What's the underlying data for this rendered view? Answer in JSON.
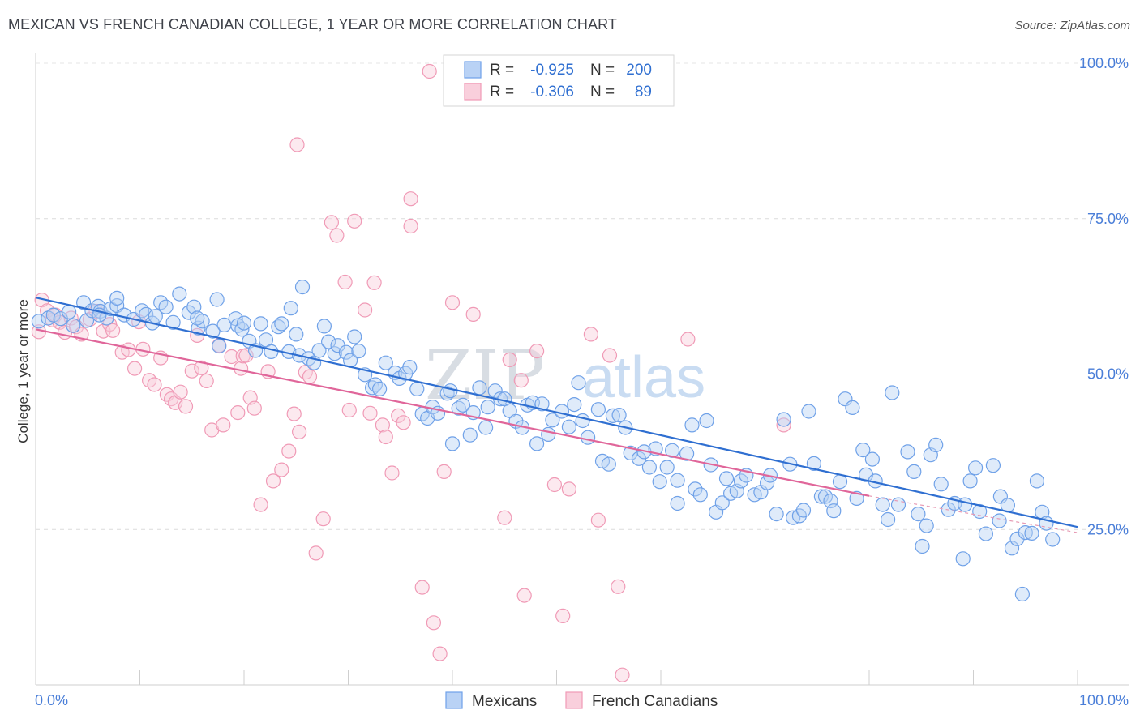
{
  "title": "MEXICAN VS FRENCH CANADIAN COLLEGE, 1 YEAR OR MORE CORRELATION CHART",
  "source": "Source: ZipAtlas.com",
  "watermark": {
    "zip": "ZIP",
    "atlas": "atlas"
  },
  "chart_data": {
    "type": "scatter",
    "title": "MEXICAN VS FRENCH CANADIAN COLLEGE, 1 YEAR OR MORE CORRELATION CHART",
    "xlabel": "",
    "ylabel": "College, 1 year or more",
    "xlim": [
      0,
      100
    ],
    "ylim": [
      0,
      100
    ],
    "x_tick_labels": [
      "0.0%",
      "100.0%"
    ],
    "y_ticks": [
      25,
      50,
      75,
      100
    ],
    "y_tick_labels": [
      "25.0%",
      "50.0%",
      "75.0%",
      "100.0%"
    ],
    "grid": true,
    "legend_position": "top-center",
    "legend": [
      {
        "name": "Mexicans",
        "r_label": "R =",
        "r_value": "-0.925",
        "n_label": "N =",
        "n_value": "200",
        "color": "#6fa1e8",
        "fill": "#b9d2f5"
      },
      {
        "name": "French Canadians",
        "r_label": "R =",
        "r_value": "-0.306",
        "n_label": "N =",
        "n_value": "89",
        "color": "#f09ab6",
        "fill": "#f9cfdc"
      }
    ],
    "series": [
      {
        "name": "Mexicans",
        "color": "#6fa1e8",
        "trend": {
          "x": [
            0,
            100
          ],
          "y": [
            62.3,
            25.4
          ],
          "color": "#2f6fd1"
        },
        "points": [
          [
            0.3,
            58.5
          ],
          [
            1.2,
            59.0
          ],
          [
            1.7,
            59.5
          ],
          [
            2.4,
            58.9
          ],
          [
            3.2,
            60.0
          ],
          [
            3.6,
            57.8
          ],
          [
            4.6,
            61.5
          ],
          [
            4.9,
            58.6
          ],
          [
            5.4,
            60.2
          ],
          [
            6.0,
            60.9
          ],
          [
            6.2,
            60.1
          ],
          [
            6.8,
            59.0
          ],
          [
            7.2,
            60.5
          ],
          [
            7.8,
            61.0
          ],
          [
            7.8,
            62.2
          ],
          [
            8.5,
            59.5
          ],
          [
            9.4,
            58.8
          ],
          [
            10.2,
            60.2
          ],
          [
            10.6,
            59.6
          ],
          [
            11.2,
            58.2
          ],
          [
            12.0,
            61.5
          ],
          [
            12.5,
            60.8
          ],
          [
            13.2,
            58.3
          ],
          [
            13.8,
            62.9
          ],
          [
            14.7,
            59.9
          ],
          [
            15.2,
            60.8
          ],
          [
            15.6,
            57.4
          ],
          [
            16.0,
            58.5
          ],
          [
            17.0,
            56.9
          ],
          [
            17.6,
            54.5
          ],
          [
            17.4,
            62.0
          ],
          [
            18.1,
            57.9
          ],
          [
            19.2,
            58.9
          ],
          [
            19.4,
            57.8
          ],
          [
            19.8,
            57.2
          ],
          [
            20.0,
            58.2
          ],
          [
            20.5,
            55.3
          ],
          [
            21.1,
            53.8
          ],
          [
            21.6,
            58.1
          ],
          [
            22.1,
            55.5
          ],
          [
            22.6,
            53.6
          ],
          [
            23.3,
            57.6
          ],
          [
            23.6,
            58.1
          ],
          [
            24.3,
            53.6
          ],
          [
            24.5,
            60.6
          ],
          [
            25.0,
            56.4
          ],
          [
            25.3,
            53.0
          ],
          [
            25.6,
            64.0
          ],
          [
            26.2,
            52.5
          ],
          [
            26.7,
            51.8
          ],
          [
            27.2,
            53.8
          ],
          [
            27.7,
            57.7
          ],
          [
            28.1,
            55.2
          ],
          [
            28.7,
            53.3
          ],
          [
            29.0,
            54.6
          ],
          [
            29.8,
            53.5
          ],
          [
            30.2,
            52.2
          ],
          [
            30.6,
            56.0
          ],
          [
            31.0,
            53.7
          ],
          [
            31.6,
            49.9
          ],
          [
            32.3,
            47.8
          ],
          [
            32.6,
            48.3
          ],
          [
            33.0,
            47.6
          ],
          [
            33.6,
            51.8
          ],
          [
            34.5,
            50.2
          ],
          [
            34.9,
            49.3
          ],
          [
            35.5,
            50.1
          ],
          [
            35.9,
            51.1
          ],
          [
            36.6,
            47.6
          ],
          [
            37.1,
            43.6
          ],
          [
            37.6,
            42.9
          ],
          [
            38.1,
            44.7
          ],
          [
            38.6,
            43.7
          ],
          [
            39.5,
            46.9
          ],
          [
            39.8,
            47.3
          ],
          [
            40.0,
            38.8
          ],
          [
            40.6,
            44.5
          ],
          [
            41.0,
            45.0
          ],
          [
            41.7,
            40.2
          ],
          [
            42.0,
            43.8
          ],
          [
            42.6,
            47.8
          ],
          [
            43.2,
            41.4
          ],
          [
            43.4,
            44.7
          ],
          [
            44.1,
            47.3
          ],
          [
            44.6,
            46.0
          ],
          [
            45.0,
            46.0
          ],
          [
            45.5,
            44.1
          ],
          [
            46.1,
            42.4
          ],
          [
            46.7,
            41.4
          ],
          [
            47.2,
            45.0
          ],
          [
            47.7,
            45.4
          ],
          [
            48.1,
            38.8
          ],
          [
            48.6,
            45.2
          ],
          [
            49.2,
            40.3
          ],
          [
            49.6,
            42.6
          ],
          [
            50.5,
            44.0
          ],
          [
            51.2,
            41.5
          ],
          [
            51.7,
            45.1
          ],
          [
            52.1,
            48.6
          ],
          [
            52.5,
            42.5
          ],
          [
            53.0,
            39.8
          ],
          [
            54.0,
            44.3
          ],
          [
            54.4,
            36.0
          ],
          [
            55.0,
            35.5
          ],
          [
            55.4,
            43.3
          ],
          [
            56.0,
            43.4
          ],
          [
            56.6,
            41.4
          ],
          [
            57.1,
            37.3
          ],
          [
            57.9,
            36.4
          ],
          [
            58.4,
            37.5
          ],
          [
            58.9,
            35.0
          ],
          [
            59.5,
            38.0
          ],
          [
            59.9,
            32.7
          ],
          [
            60.6,
            35.0
          ],
          [
            61.1,
            37.7
          ],
          [
            61.6,
            29.2
          ],
          [
            61.6,
            32.9
          ],
          [
            62.5,
            37.2
          ],
          [
            63.0,
            41.8
          ],
          [
            63.3,
            31.5
          ],
          [
            63.8,
            30.6
          ],
          [
            64.4,
            42.5
          ],
          [
            64.8,
            35.4
          ],
          [
            65.3,
            27.8
          ],
          [
            65.9,
            29.3
          ],
          [
            66.3,
            33.2
          ],
          [
            66.7,
            30.8
          ],
          [
            67.3,
            31.2
          ],
          [
            67.7,
            32.8
          ],
          [
            68.2,
            33.7
          ],
          [
            69.0,
            30.6
          ],
          [
            69.6,
            31.0
          ],
          [
            70.2,
            32.5
          ],
          [
            70.5,
            33.7
          ],
          [
            71.1,
            27.5
          ],
          [
            71.8,
            42.7
          ],
          [
            72.4,
            35.5
          ],
          [
            72.7,
            26.9
          ],
          [
            73.3,
            27.2
          ],
          [
            73.7,
            28.1
          ],
          [
            74.2,
            44.0
          ],
          [
            74.7,
            35.6
          ],
          [
            75.4,
            30.3
          ],
          [
            75.8,
            30.3
          ],
          [
            76.3,
            29.6
          ],
          [
            76.6,
            28.0
          ],
          [
            77.2,
            32.7
          ],
          [
            77.7,
            46.0
          ],
          [
            78.4,
            44.6
          ],
          [
            78.8,
            30.0
          ],
          [
            79.4,
            37.8
          ],
          [
            79.7,
            33.8
          ],
          [
            80.3,
            36.3
          ],
          [
            80.6,
            32.8
          ],
          [
            81.3,
            29.0
          ],
          [
            81.8,
            26.6
          ],
          [
            82.2,
            47.0
          ],
          [
            82.8,
            29.0
          ],
          [
            83.7,
            37.5
          ],
          [
            84.3,
            34.3
          ],
          [
            84.7,
            27.5
          ],
          [
            85.1,
            22.3
          ],
          [
            85.5,
            25.6
          ],
          [
            85.9,
            37.0
          ],
          [
            86.4,
            38.6
          ],
          [
            86.9,
            32.3
          ],
          [
            87.6,
            28.2
          ],
          [
            88.2,
            29.2
          ],
          [
            89.0,
            20.3
          ],
          [
            89.2,
            29.0
          ],
          [
            89.7,
            32.8
          ],
          [
            90.2,
            34.9
          ],
          [
            90.6,
            27.9
          ],
          [
            91.2,
            24.3
          ],
          [
            91.9,
            35.3
          ],
          [
            92.5,
            26.4
          ],
          [
            92.6,
            30.3
          ],
          [
            93.3,
            28.9
          ],
          [
            93.7,
            22.0
          ],
          [
            94.2,
            23.5
          ],
          [
            94.7,
            14.6
          ],
          [
            95.0,
            24.5
          ],
          [
            95.6,
            24.4
          ],
          [
            96.1,
            32.8
          ],
          [
            96.6,
            27.8
          ],
          [
            97.0,
            26.0
          ],
          [
            97.6,
            23.4
          ],
          [
            6.1,
            59.5
          ],
          [
            11.5,
            59.3
          ],
          [
            15.5,
            59.0
          ]
        ]
      },
      {
        "name": "French Canadians",
        "color": "#f09ab6",
        "trend": {
          "x": [
            0,
            80
          ],
          "y": [
            57.2,
            30.4
          ],
          "dashed_to": [
            100,
            24.5
          ],
          "color": "#e0669a"
        },
        "points": [
          [
            0.6,
            61.9
          ],
          [
            0.3,
            56.8
          ],
          [
            1.1,
            60.2
          ],
          [
            1.6,
            58.7
          ],
          [
            1.9,
            59.5
          ],
          [
            2.3,
            58.3
          ],
          [
            2.8,
            56.7
          ],
          [
            3.4,
            59.0
          ],
          [
            3.9,
            57.6
          ],
          [
            4.4,
            56.4
          ],
          [
            5.2,
            58.8
          ],
          [
            5.8,
            60.1
          ],
          [
            6.5,
            56.9
          ],
          [
            7.1,
            58.0
          ],
          [
            7.4,
            57.0
          ],
          [
            8.3,
            53.5
          ],
          [
            8.9,
            53.9
          ],
          [
            9.5,
            50.9
          ],
          [
            9.9,
            58.4
          ],
          [
            10.3,
            54.0
          ],
          [
            10.9,
            49.0
          ],
          [
            11.4,
            48.3
          ],
          [
            12.0,
            52.6
          ],
          [
            12.6,
            46.7
          ],
          [
            13.0,
            46.0
          ],
          [
            13.4,
            45.4
          ],
          [
            13.9,
            47.1
          ],
          [
            14.4,
            44.8
          ],
          [
            15.0,
            50.5
          ],
          [
            15.5,
            56.2
          ],
          [
            15.9,
            51.0
          ],
          [
            16.4,
            48.9
          ],
          [
            16.9,
            41.0
          ],
          [
            17.6,
            54.6
          ],
          [
            18.0,
            41.8
          ],
          [
            18.8,
            52.8
          ],
          [
            19.4,
            43.8
          ],
          [
            19.7,
            50.9
          ],
          [
            19.9,
            52.9
          ],
          [
            20.2,
            53.0
          ],
          [
            20.6,
            46.2
          ],
          [
            21.0,
            44.5
          ],
          [
            21.6,
            29.0
          ],
          [
            22.3,
            50.4
          ],
          [
            22.8,
            32.8
          ],
          [
            23.6,
            34.6
          ],
          [
            24.3,
            37.6
          ],
          [
            24.8,
            43.6
          ],
          [
            25.3,
            40.7
          ],
          [
            25.9,
            50.3
          ],
          [
            26.3,
            49.6
          ],
          [
            26.9,
            21.2
          ],
          [
            27.6,
            26.7
          ],
          [
            28.4,
            74.4
          ],
          [
            28.9,
            72.3
          ],
          [
            29.7,
            64.8
          ],
          [
            30.1,
            44.2
          ],
          [
            30.6,
            74.6
          ],
          [
            31.6,
            60.3
          ],
          [
            32.1,
            43.7
          ],
          [
            32.5,
            64.7
          ],
          [
            33.3,
            41.8
          ],
          [
            33.6,
            39.9
          ],
          [
            34.2,
            34.1
          ],
          [
            34.8,
            43.3
          ],
          [
            35.3,
            42.2
          ],
          [
            36.0,
            73.8
          ],
          [
            36.0,
            78.2
          ],
          [
            37.1,
            15.7
          ],
          [
            37.8,
            98.7
          ],
          [
            38.2,
            10.0
          ],
          [
            38.8,
            5.0
          ],
          [
            39.2,
            34.3
          ],
          [
            40.0,
            61.5
          ],
          [
            42.0,
            59.6
          ],
          [
            45.0,
            26.9
          ],
          [
            45.5,
            52.3
          ],
          [
            46.6,
            49.0
          ],
          [
            46.9,
            14.4
          ],
          [
            48.1,
            53.7
          ],
          [
            49.8,
            32.2
          ],
          [
            50.6,
            11.1
          ],
          [
            51.2,
            31.5
          ],
          [
            53.3,
            56.4
          ],
          [
            54.0,
            26.5
          ],
          [
            55.1,
            53.0
          ],
          [
            55.9,
            15.8
          ],
          [
            56.3,
            1.6
          ],
          [
            25.1,
            86.9
          ],
          [
            62.6,
            55.6
          ],
          [
            71.8,
            41.8
          ]
        ]
      }
    ]
  }
}
